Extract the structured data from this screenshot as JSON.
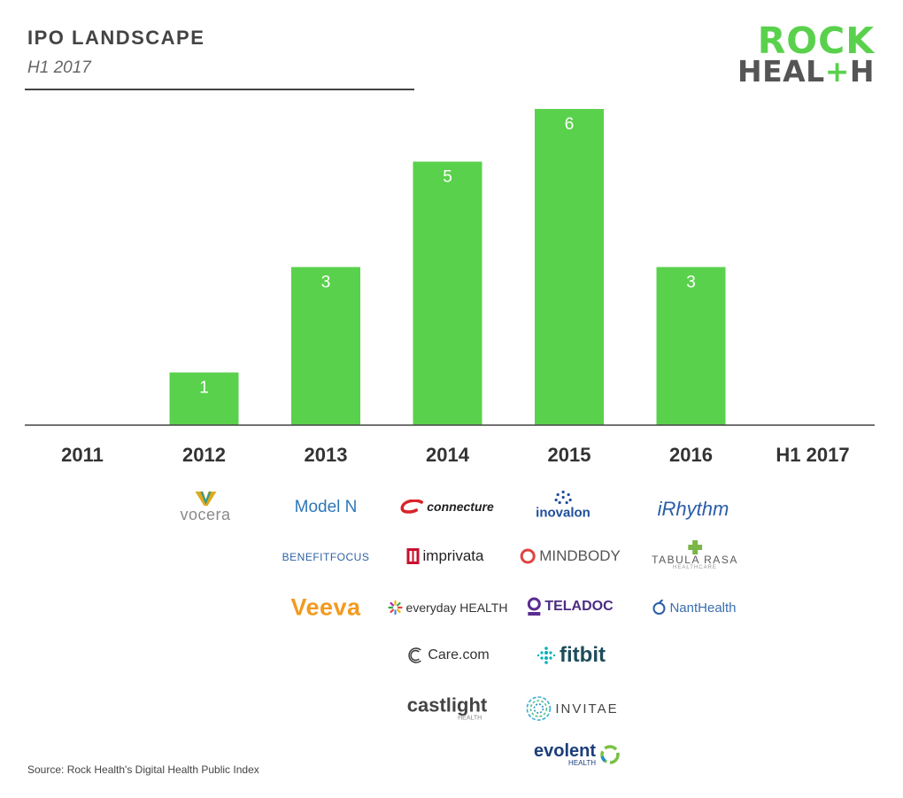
{
  "header": {
    "title": "IPO LANDSCAPE",
    "subtitle": "H1 2017"
  },
  "brand": {
    "line1": "ROCK",
    "line2_start": "HEAL",
    "line2_plus": "+",
    "line2_end": "H",
    "colors": {
      "green": "#5ad14c",
      "gray": "#555555"
    }
  },
  "chart_data": {
    "type": "bar",
    "categories": [
      "2011",
      "2012",
      "2013",
      "2014",
      "2015",
      "2016",
      "H1 2017"
    ],
    "values": [
      0,
      1,
      3,
      5,
      6,
      3,
      0
    ],
    "data_labels": [
      "",
      "1",
      "3",
      "5",
      "6",
      "3",
      ""
    ],
    "title": "IPO LANDSCAPE",
    "subtitle": "H1 2017",
    "ylim": [
      0,
      6
    ],
    "grid": false,
    "bar_color": "#5ad14c"
  },
  "logos": {
    "c2012": [
      "vocera"
    ],
    "c2013": [
      "Model N",
      "BENEFITFOCUS",
      "Veeva"
    ],
    "c2014": [
      "connecture",
      "imprivata",
      "everyday HEALTH",
      "Care.com",
      "castlight"
    ],
    "c2015": [
      "inovalon",
      "MINDBODY",
      "TELADOC",
      "fitbit",
      "INVITAE",
      "evolent"
    ],
    "c2016": [
      "iRhythm",
      "TABULA RASA",
      "NantHealth"
    ],
    "sublabels": {
      "castlight": "HEALTH",
      "evolent": "HEALTH",
      "tabula": "HEALTHCARE"
    }
  },
  "source": "Source: Rock Health's Digital Health Public Index"
}
